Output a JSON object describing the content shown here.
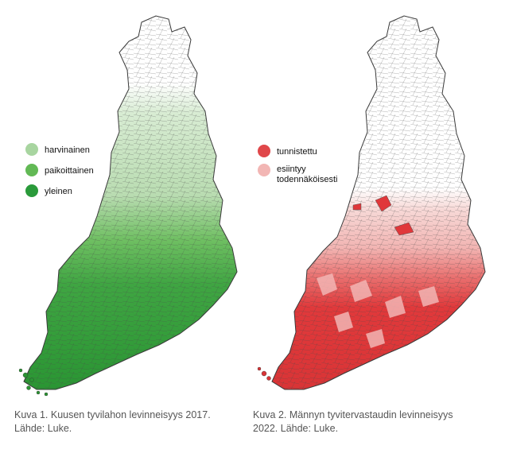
{
  "maps": [
    {
      "id": "left",
      "legend": [
        {
          "label": "harvinainen",
          "color": "#a8d5a0"
        },
        {
          "label": "paikoittainen",
          "color": "#62b955"
        },
        {
          "label": "yleinen",
          "color": "#2a9a3a"
        }
      ],
      "caption": {
        "line1": "Kuva 1. Kuusen tyvilahon levinneisyys 2017.",
        "line2": "Lähde: Luke."
      },
      "colors": {
        "light": "#cfe8c9",
        "mid": "#8fcd82",
        "dark": "#2f9c35"
      }
    },
    {
      "id": "right",
      "legend": [
        {
          "label": "tunnistettu",
          "color": "#e0474a"
        },
        {
          "label": "esiintyy",
          "label2": "todennäköisesti",
          "color": "#f2b6b4"
        }
      ],
      "caption": {
        "line1": "Kuva 2. Männyn tyvitervastaudin levinneisyys",
        "line2": "2022. Lähde: Luke."
      },
      "colors": {
        "light": "#f7d6d4",
        "mid": "#f0a6a4",
        "dark": "#e0373a"
      }
    }
  ]
}
